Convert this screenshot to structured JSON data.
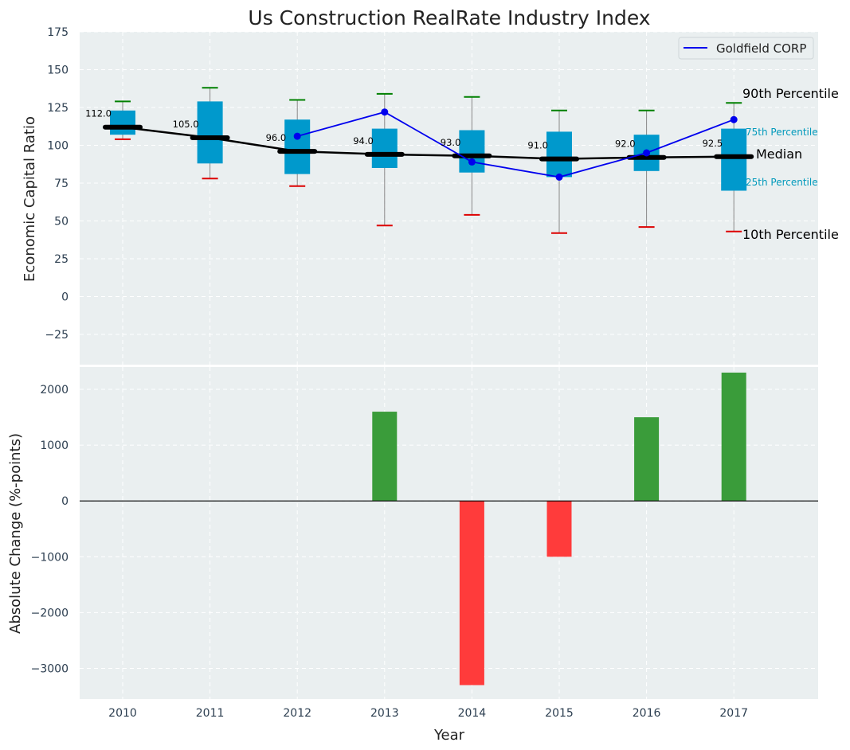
{
  "chart_data": [
    {
      "type": "box",
      "title": "Us Construction RealRate Industry Index",
      "ylabel": "Economic Capital Ratio",
      "ylim": [
        -45,
        175
      ],
      "yticks": [
        175,
        150,
        125,
        100,
        75,
        50,
        25,
        0,
        -25
      ],
      "ytick_labels": [
        "175",
        "150",
        "125",
        "100",
        "75",
        "50",
        "25",
        "0",
        "−25"
      ],
      "categories": [
        "2010",
        "2011",
        "2012",
        "2013",
        "2014",
        "2015",
        "2016",
        "2017"
      ],
      "p10": [
        104,
        78,
        73,
        47,
        54,
        42,
        46,
        43
      ],
      "p25": [
        107,
        88,
        81,
        85,
        82,
        79,
        83,
        70
      ],
      "median": [
        112.0,
        105.0,
        96.0,
        94.0,
        93.0,
        91.0,
        92.0,
        92.5
      ],
      "median_labels": [
        "112.0",
        "105.0",
        "96.0",
        "94.0",
        "93.0",
        "91.0",
        "92.0",
        "92.5"
      ],
      "p75": [
        123,
        129,
        117,
        111,
        110,
        109,
        107,
        111
      ],
      "p90": [
        129,
        138,
        130,
        134,
        132,
        123,
        123,
        128
      ],
      "series": [
        {
          "name": "Goldfield CORP",
          "values": [
            null,
            null,
            106,
            122,
            89,
            79,
            95,
            117
          ],
          "color": "#0000ee"
        }
      ],
      "legend": {
        "label": "Goldfield CORP",
        "position": "top-right"
      },
      "annotations": {
        "p90": "90th Percentile",
        "p75": "75th Percentile",
        "median": "Median",
        "p25": "25th Percentile",
        "p10": "10th Percentile"
      },
      "colors": {
        "box": "#0099cc",
        "median_line": "#000000",
        "whisker": "#888888",
        "p90_cap": "#008000",
        "p10_cap": "#dd0000",
        "annotation_blue": "#0099bb",
        "background": "#eaeff0",
        "grid": "#ffffff",
        "axis_text": "#2c3e50"
      }
    },
    {
      "type": "bar",
      "xlabel": "Year",
      "ylabel": "Absolute Change (%-points)",
      "ylim": [
        -3550,
        2400
      ],
      "yticks": [
        2000,
        1000,
        0,
        -1000,
        -2000,
        -3000
      ],
      "ytick_labels": [
        "2000",
        "1000",
        "0",
        "−1000",
        "−2000",
        "−3000"
      ],
      "categories": [
        "2010",
        "2011",
        "2012",
        "2013",
        "2014",
        "2015",
        "2016",
        "2017"
      ],
      "values": [
        0,
        0,
        0,
        1600,
        -3300,
        -1000,
        1500,
        2300
      ],
      "colors": {
        "positive": "#3a9c3a",
        "negative": "#ff3b3b",
        "zero_line": "#000000"
      }
    }
  ]
}
